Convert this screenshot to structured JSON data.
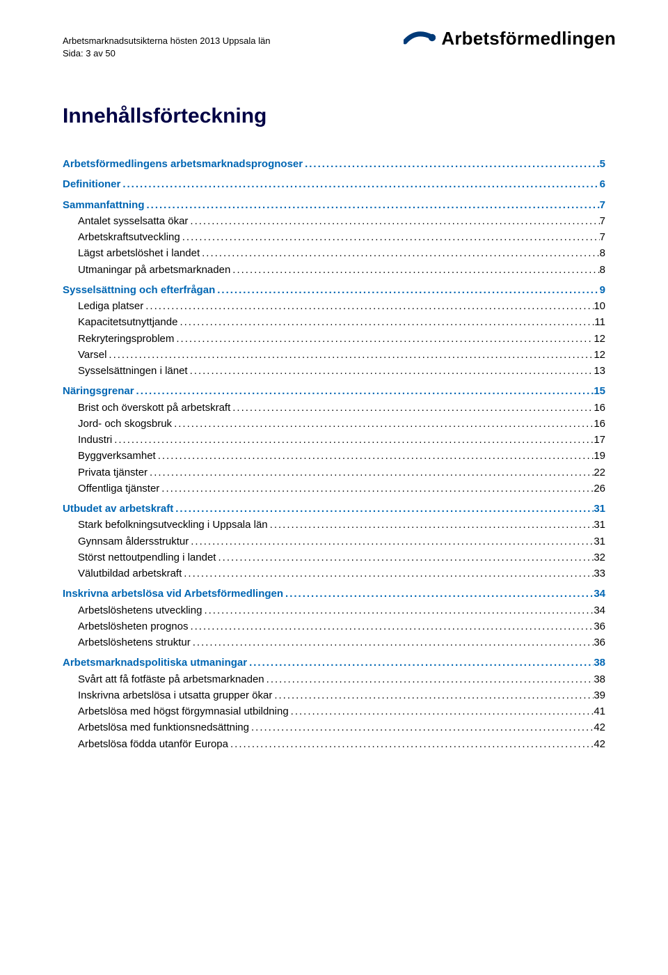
{
  "header": {
    "line1": "Arbetsmarknadsutsikterna hösten 2013 Uppsala län",
    "line2": "Sida: 3 av 50"
  },
  "brand": {
    "name": "Arbetsförmedlingen",
    "swoosh_color": "#003a78",
    "dot_color": "#003a78"
  },
  "colors": {
    "title_color": "#000044",
    "heading_color": "#0066b3",
    "text_color": "#000000",
    "background": "#ffffff"
  },
  "doc_title": "Innehållsförteckning",
  "toc": [
    {
      "level": 1,
      "label": "Arbetsförmedlingens arbetsmarknadsprognoser",
      "page": "5"
    },
    {
      "level": 1,
      "label": "Definitioner",
      "page": "6"
    },
    {
      "level": 1,
      "label": "Sammanfattning",
      "page": "7"
    },
    {
      "level": 2,
      "label": "Antalet sysselsatta ökar",
      "page": "7"
    },
    {
      "level": 2,
      "label": "Arbetskraftsutveckling",
      "page": "7"
    },
    {
      "level": 2,
      "label": "Lägst arbetslöshet i landet",
      "page": "8"
    },
    {
      "level": 2,
      "label": "Utmaningar på arbetsmarknaden",
      "page": "8"
    },
    {
      "level": 1,
      "label": "Sysselsättning och efterfrågan",
      "page": "9"
    },
    {
      "level": 2,
      "label": "Lediga platser",
      "page": "10"
    },
    {
      "level": 2,
      "label": "Kapacitetsutnyttjande",
      "page": "11"
    },
    {
      "level": 2,
      "label": "Rekryteringsproblem",
      "page": "12"
    },
    {
      "level": 2,
      "label": "Varsel",
      "page": "12"
    },
    {
      "level": 2,
      "label": "Sysselsättningen i länet",
      "page": "13"
    },
    {
      "level": 1,
      "label": "Näringsgrenar",
      "page": "15"
    },
    {
      "level": 2,
      "label": "Brist och överskott på arbetskraft",
      "page": "16"
    },
    {
      "level": 2,
      "label": "Jord- och skogsbruk",
      "page": "16"
    },
    {
      "level": 2,
      "label": "Industri",
      "page": "17"
    },
    {
      "level": 2,
      "label": "Byggverksamhet",
      "page": "19"
    },
    {
      "level": 2,
      "label": "Privata tjänster",
      "page": "22"
    },
    {
      "level": 2,
      "label": "Offentliga tjänster",
      "page": "26"
    },
    {
      "level": 1,
      "label": "Utbudet av arbetskraft",
      "page": "31"
    },
    {
      "level": 2,
      "label": "Stark befolkningsutveckling i Uppsala län",
      "page": "31"
    },
    {
      "level": 2,
      "label": "Gynnsam åldersstruktur",
      "page": "31"
    },
    {
      "level": 2,
      "label": "Störst nettoutpendling i landet",
      "page": "32"
    },
    {
      "level": 2,
      "label": "Välutbildad arbetskraft",
      "page": "33"
    },
    {
      "level": 1,
      "label": "Inskrivna arbetslösa vid Arbetsförmedlingen",
      "page": "34"
    },
    {
      "level": 2,
      "label": "Arbetslöshetens utveckling",
      "page": "34"
    },
    {
      "level": 2,
      "label": "Arbetslösheten prognos",
      "page": "36"
    },
    {
      "level": 2,
      "label": "Arbetslöshetens struktur",
      "page": "36"
    },
    {
      "level": 1,
      "label": "Arbetsmarknadspolitiska utmaningar",
      "page": "38"
    },
    {
      "level": 2,
      "label": "Svårt att få fotfäste på arbetsmarknaden",
      "page": "38"
    },
    {
      "level": 2,
      "label": "Inskrivna arbetslösa i utsatta grupper ökar",
      "page": "39"
    },
    {
      "level": 2,
      "label": "Arbetslösa med högst förgymnasial utbildning",
      "page": "41"
    },
    {
      "level": 2,
      "label": "Arbetslösa med funktionsnedsättning",
      "page": "42"
    },
    {
      "level": 2,
      "label": "Arbetslösa födda utanför Europa",
      "page": "42"
    }
  ]
}
